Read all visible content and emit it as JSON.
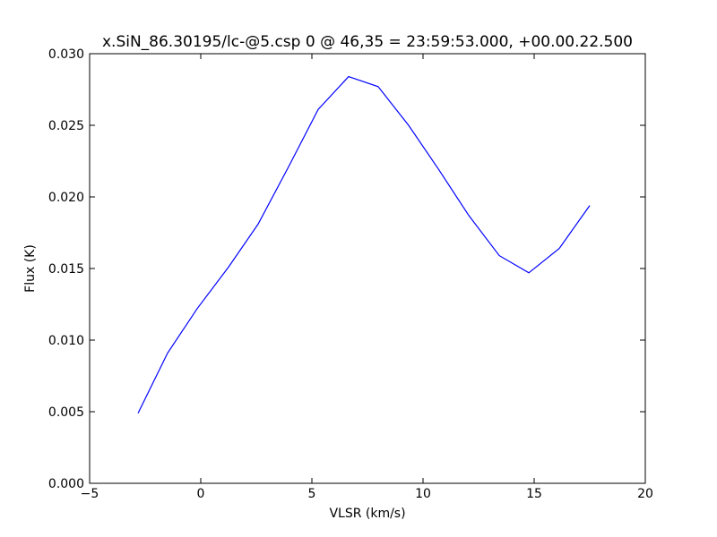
{
  "chart_data": {
    "type": "line",
    "title": "x.SiN_86.30195/lc-@5.csp 0 @ 46,35 = 23:59:53.000, +00.00.22.500",
    "x_label": "VLSR (km/s)",
    "y_label": "Flux (K)",
    "x": [
      -2.82,
      -1.49,
      -0.16,
      1.25,
      2.58,
      3.95,
      5.28,
      6.65,
      7.98,
      9.35,
      10.71,
      12.06,
      13.43,
      14.76,
      16.13,
      17.5
    ],
    "series": [
      {
        "color": "#0000ff",
        "values": [
          0.0049,
          0.0091,
          0.0122,
          0.0151,
          0.0181,
          0.0221,
          0.0261,
          0.0284,
          0.0277,
          0.025,
          0.0219,
          0.0187,
          0.0159,
          0.0147,
          0.0164,
          0.0194
        ]
      }
    ],
    "xlim": [
      -5,
      20
    ],
    "xticks": [
      {
        "value": -5,
        "label": "−5"
      },
      0,
      5,
      10,
      15,
      20
    ],
    "ylim": [
      0,
      0.03
    ],
    "yticks": [
      {
        "value": 0,
        "label": "0.000"
      },
      {
        "value": 0.005,
        "label": "0.005"
      },
      {
        "value": 0.01,
        "label": "0.010"
      },
      {
        "value": 0.015,
        "label": "0.015"
      },
      {
        "value": 0.02,
        "label": "0.020"
      },
      {
        "value": 0.025,
        "label": "0.025"
      },
      {
        "value": 0.03,
        "label": "0.030"
      }
    ],
    "grid": false
  }
}
